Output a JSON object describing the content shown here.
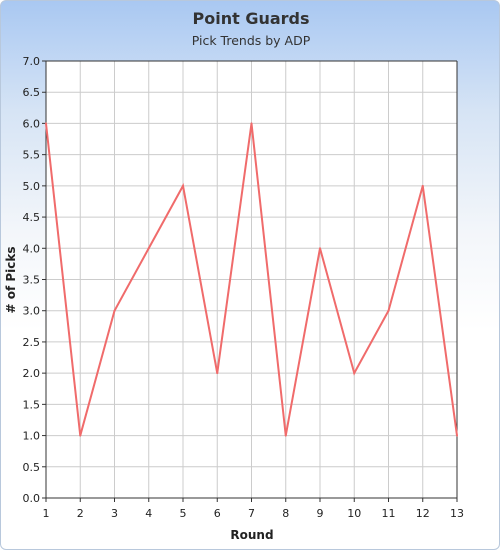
{
  "chart_data": {
    "type": "line",
    "title": "Point Guards",
    "subtitle": "Pick Trends by ADP",
    "xlabel": "Round",
    "ylabel": "# of Picks",
    "x": [
      1,
      2,
      3,
      4,
      5,
      6,
      7,
      8,
      9,
      10,
      11,
      12,
      13
    ],
    "x_tick_labels": [
      "1",
      "2",
      "3",
      "4",
      "5",
      "6",
      "7",
      "8",
      "9",
      "10",
      "11",
      "12",
      "13"
    ],
    "series": [
      {
        "values": [
          6,
          1,
          3,
          4,
          5,
          2,
          6,
          1,
          4,
          2,
          3,
          5,
          1
        ],
        "color": "#f06b6b"
      }
    ],
    "xlim": [
      1,
      13
    ],
    "ylim": [
      0,
      7
    ],
    "y_tick_labels": [
      "0.0",
      "0.5",
      "1.0",
      "1.5",
      "2.0",
      "2.5",
      "3.0",
      "3.5",
      "4.0",
      "4.5",
      "5.0",
      "5.5",
      "6.0",
      "6.5",
      "7.0"
    ],
    "grid": true,
    "legend": "none",
    "colors": {
      "grid": "#cccccc",
      "axis": "#333333",
      "line": "#f06b6b"
    }
  }
}
